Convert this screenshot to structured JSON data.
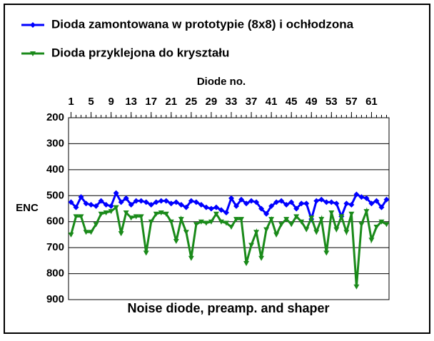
{
  "chart_data": {
    "type": "line",
    "title": "Noise diode, preamp. and shaper",
    "x_label": "Diode no.",
    "y_label": "ENC",
    "x": [
      1,
      2,
      3,
      4,
      5,
      6,
      7,
      8,
      9,
      10,
      11,
      12,
      13,
      14,
      15,
      16,
      17,
      18,
      19,
      20,
      21,
      22,
      23,
      24,
      25,
      26,
      27,
      28,
      29,
      30,
      31,
      32,
      33,
      34,
      35,
      36,
      37,
      38,
      39,
      40,
      41,
      42,
      43,
      44,
      45,
      46,
      47,
      48,
      49,
      50,
      51,
      52,
      53,
      54,
      55,
      56,
      57,
      58,
      59,
      60,
      61,
      62,
      63,
      64
    ],
    "xlim": [
      0.5,
      64.5
    ],
    "xticks": [
      1,
      5,
      9,
      13,
      17,
      21,
      25,
      29,
      33,
      37,
      41,
      45,
      49,
      53,
      57,
      61
    ],
    "ylim": [
      900,
      200
    ],
    "yticks": [
      200,
      300,
      400,
      500,
      600,
      700,
      800,
      900
    ],
    "grid": true,
    "series": [
      {
        "name": "Dioda zamontowana w prototypie (8x8) i ochłodzona",
        "color": "#0000ff",
        "marker": "diamond",
        "values": [
          525,
          545,
          505,
          530,
          535,
          540,
          520,
          535,
          540,
          490,
          525,
          510,
          535,
          520,
          520,
          525,
          535,
          525,
          520,
          520,
          530,
          525,
          535,
          545,
          520,
          525,
          535,
          545,
          550,
          545,
          555,
          565,
          510,
          540,
          515,
          530,
          520,
          525,
          550,
          570,
          540,
          525,
          520,
          535,
          525,
          550,
          530,
          530,
          590,
          520,
          515,
          525,
          525,
          530,
          580,
          530,
          535,
          495,
          505,
          510,
          530,
          520,
          545,
          515
        ]
      },
      {
        "name": "Dioda przyklejona do kryształu",
        "color": "#1a8a1a",
        "marker": "triangle",
        "values": [
          650,
          580,
          580,
          640,
          640,
          610,
          570,
          565,
          560,
          545,
          645,
          565,
          585,
          580,
          580,
          720,
          600,
          570,
          565,
          570,
          600,
          675,
          590,
          640,
          740,
          610,
          600,
          605,
          600,
          570,
          600,
          605,
          620,
          590,
          590,
          760,
          690,
          640,
          740,
          630,
          590,
          650,
          610,
          590,
          610,
          580,
          600,
          630,
          585,
          640,
          590,
          720,
          565,
          630,
          580,
          640,
          570,
          850,
          610,
          560,
          670,
          620,
          600,
          610
        ]
      }
    ]
  }
}
